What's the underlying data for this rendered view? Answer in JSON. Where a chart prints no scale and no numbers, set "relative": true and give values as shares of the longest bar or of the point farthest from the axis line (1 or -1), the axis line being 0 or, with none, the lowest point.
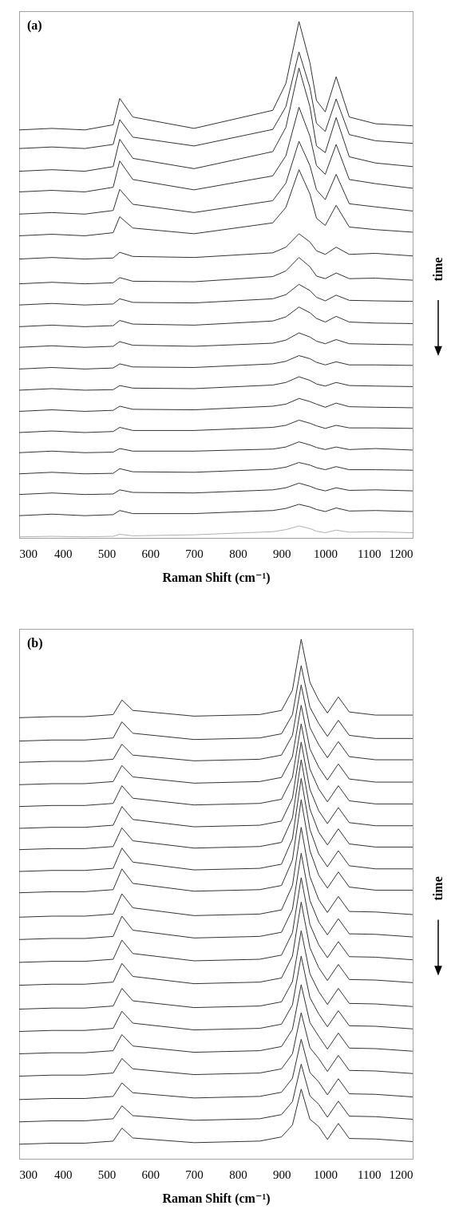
{
  "chart_data": [
    {
      "type": "line",
      "x": [
        300,
        375,
        450,
        515,
        530,
        560,
        700,
        880,
        910,
        940,
        965,
        980,
        1000,
        1025,
        1055,
        1115,
        1200
      ],
      "xlim": [
        300,
        1200
      ],
      "xticks": [
        300,
        400,
        500,
        600,
        700,
        800,
        900,
        1000,
        1100,
        1200
      ],
      "xlabel": "Raman Shift (cm⁻¹)",
      "relative": true,
      "annotations": [
        "(a)",
        "time"
      ],
      "series": [
        {
          "color": "#333333",
          "values": [
            0.79,
            0.793,
            0.79,
            0.8,
            0.851,
            0.815,
            0.793,
            0.828,
            0.88,
            1,
            0.92,
            0.847,
            0.825,
            0.893,
            0.815,
            0.802,
            0.798
          ]
        },
        {
          "color": "#333333",
          "values": [
            0.754,
            0.757,
            0.754,
            0.762,
            0.81,
            0.776,
            0.759,
            0.791,
            0.835,
            0.941,
            0.872,
            0.803,
            0.787,
            0.85,
            0.781,
            0.769,
            0.764
          ]
        },
        {
          "color": "#333333",
          "values": [
            0.71,
            0.713,
            0.71,
            0.719,
            0.772,
            0.735,
            0.715,
            0.748,
            0.795,
            0.91,
            0.835,
            0.759,
            0.746,
            0.814,
            0.738,
            0.726,
            0.719
          ]
        },
        {
          "color": "#333333",
          "values": [
            0.67,
            0.673,
            0.67,
            0.679,
            0.73,
            0.694,
            0.674,
            0.701,
            0.74,
            0.834,
            0.778,
            0.721,
            0.704,
            0.762,
            0.694,
            0.686,
            0.677
          ]
        },
        {
          "color": "#333333",
          "values": [
            0.627,
            0.63,
            0.627,
            0.634,
            0.675,
            0.646,
            0.63,
            0.653,
            0.687,
            0.768,
            0.721,
            0.674,
            0.655,
            0.704,
            0.647,
            0.641,
            0.633
          ]
        },
        {
          "color": "#333333",
          "values": [
            0.585,
            0.588,
            0.585,
            0.591,
            0.622,
            0.6,
            0.589,
            0.61,
            0.64,
            0.713,
            0.666,
            0.619,
            0.605,
            0.644,
            0.602,
            0.597,
            0.592
          ]
        },
        {
          "color": "#333333",
          "values": [
            0.54,
            0.543,
            0.54,
            0.542,
            0.553,
            0.545,
            0.543,
            0.552,
            0.563,
            0.589,
            0.573,
            0.556,
            0.549,
            0.563,
            0.549,
            0.551,
            0.546
          ]
        },
        {
          "color": "#333333",
          "values": [
            0.492,
            0.495,
            0.492,
            0.494,
            0.504,
            0.497,
            0.496,
            0.506,
            0.517,
            0.543,
            0.525,
            0.507,
            0.502,
            0.513,
            0.502,
            0.503,
            0.499
          ]
        },
        {
          "color": "#333333",
          "values": [
            0.451,
            0.454,
            0.451,
            0.453,
            0.463,
            0.456,
            0.455,
            0.463,
            0.471,
            0.491,
            0.479,
            0.466,
            0.459,
            0.47,
            0.46,
            0.459,
            0.458
          ]
        },
        {
          "color": "#333333",
          "values": [
            0.409,
            0.412,
            0.409,
            0.411,
            0.421,
            0.414,
            0.412,
            0.42,
            0.428,
            0.447,
            0.436,
            0.425,
            0.418,
            0.429,
            0.418,
            0.416,
            0.415
          ]
        },
        {
          "color": "#333333",
          "values": [
            0.369,
            0.372,
            0.369,
            0.371,
            0.38,
            0.373,
            0.371,
            0.377,
            0.383,
            0.397,
            0.389,
            0.381,
            0.376,
            0.384,
            0.376,
            0.375,
            0.374
          ]
        },
        {
          "color": "#333333",
          "values": [
            0.327,
            0.33,
            0.327,
            0.329,
            0.337,
            0.331,
            0.33,
            0.337,
            0.342,
            0.353,
            0.347,
            0.34,
            0.335,
            0.341,
            0.335,
            0.335,
            0.334
          ]
        },
        {
          "color": "#333333",
          "values": [
            0.286,
            0.289,
            0.286,
            0.287,
            0.295,
            0.29,
            0.289,
            0.296,
            0.301,
            0.312,
            0.305,
            0.298,
            0.294,
            0.301,
            0.295,
            0.294,
            0.293
          ]
        },
        {
          "color": "#333333",
          "values": [
            0.245,
            0.248,
            0.245,
            0.247,
            0.255,
            0.249,
            0.248,
            0.255,
            0.259,
            0.27,
            0.264,
            0.259,
            0.253,
            0.261,
            0.254,
            0.253,
            0.252
          ]
        },
        {
          "color": "#333333",
          "values": [
            0.204,
            0.207,
            0.204,
            0.206,
            0.214,
            0.208,
            0.208,
            0.214,
            0.218,
            0.228,
            0.222,
            0.217,
            0.212,
            0.218,
            0.213,
            0.213,
            0.212
          ]
        },
        {
          "color": "#333333",
          "values": [
            0.165,
            0.168,
            0.165,
            0.166,
            0.173,
            0.168,
            0.168,
            0.172,
            0.176,
            0.186,
            0.18,
            0.175,
            0.171,
            0.176,
            0.171,
            0.173,
            0.17
          ]
        },
        {
          "color": "#333333",
          "values": [
            0.124,
            0.127,
            0.124,
            0.125,
            0.134,
            0.128,
            0.127,
            0.133,
            0.137,
            0.146,
            0.141,
            0.136,
            0.132,
            0.138,
            0.132,
            0.132,
            0.131
          ]
        },
        {
          "color": "#333333",
          "values": [
            0.084,
            0.087,
            0.084,
            0.085,
            0.093,
            0.088,
            0.087,
            0.093,
            0.097,
            0.106,
            0.1,
            0.095,
            0.091,
            0.097,
            0.092,
            0.093,
            0.091
          ]
        },
        {
          "color": "#333333",
          "values": [
            0.043,
            0.046,
            0.043,
            0.045,
            0.053,
            0.047,
            0.047,
            0.053,
            0.057,
            0.065,
            0.06,
            0.055,
            0.051,
            0.058,
            0.052,
            0.053,
            0.051
          ]
        },
        {
          "color": "#b0b0b0",
          "values": [
            0.002,
            0.003,
            0.002,
            0.003,
            0.007,
            0.004,
            0.006,
            0.012,
            0.016,
            0.023,
            0.018,
            0.013,
            0.01,
            0.015,
            0.011,
            0.012,
            0.01
          ]
        }
      ]
    },
    {
      "type": "line",
      "x": [
        300,
        375,
        450,
        515,
        535,
        560,
        700,
        850,
        900,
        925,
        945,
        965,
        985,
        1005,
        1030,
        1055,
        1115,
        1200
      ],
      "xlim": [
        300,
        1200
      ],
      "xticks": [
        300,
        400,
        500,
        600,
        700,
        800,
        900,
        1000,
        1100,
        1200
      ],
      "xlabel": "Raman Shift (cm⁻¹)",
      "relative": true,
      "annotations": [
        "(b)",
        "time"
      ],
      "series": [
        {
          "color": "#333333",
          "values": [
            0.849,
            0.851,
            0.851,
            0.855,
            0.883,
            0.863,
            0.852,
            0.855,
            0.863,
            0.902,
            1,
            0.917,
            0.883,
            0.858,
            0.889,
            0.86,
            0.854,
            0.854
          ]
        },
        {
          "color": "#333333",
          "values": [
            0.804,
            0.806,
            0.806,
            0.81,
            0.841,
            0.819,
            0.807,
            0.81,
            0.818,
            0.855,
            0.949,
            0.869,
            0.838,
            0.813,
            0.844,
            0.815,
            0.809,
            0.809
          ]
        },
        {
          "color": "#333333",
          "values": [
            0.763,
            0.765,
            0.765,
            0.769,
            0.798,
            0.777,
            0.766,
            0.769,
            0.777,
            0.815,
            0.912,
            0.83,
            0.797,
            0.772,
            0.803,
            0.774,
            0.768,
            0.768
          ]
        },
        {
          "color": "#333333",
          "values": [
            0.72,
            0.722,
            0.722,
            0.726,
            0.757,
            0.735,
            0.723,
            0.726,
            0.734,
            0.774,
            0.873,
            0.789,
            0.754,
            0.729,
            0.76,
            0.731,
            0.725,
            0.725
          ]
        },
        {
          "color": "#333333",
          "values": [
            0.678,
            0.68,
            0.68,
            0.684,
            0.718,
            0.694,
            0.681,
            0.684,
            0.692,
            0.734,
            0.837,
            0.75,
            0.712,
            0.687,
            0.718,
            0.689,
            0.683,
            0.683
          ]
        },
        {
          "color": "#333333",
          "values": [
            0.636,
            0.638,
            0.638,
            0.642,
            0.678,
            0.653,
            0.639,
            0.642,
            0.65,
            0.694,
            0.802,
            0.711,
            0.67,
            0.645,
            0.676,
            0.647,
            0.641,
            0.641
          ]
        },
        {
          "color": "#333333",
          "values": [
            0.595,
            0.597,
            0.597,
            0.601,
            0.637,
            0.612,
            0.598,
            0.601,
            0.609,
            0.656,
            0.768,
            0.673,
            0.629,
            0.604,
            0.635,
            0.606,
            0.6,
            0.6
          ]
        },
        {
          "color": "#333333",
          "values": [
            0.553,
            0.555,
            0.555,
            0.559,
            0.598,
            0.571,
            0.556,
            0.559,
            0.567,
            0.616,
            0.732,
            0.634,
            0.587,
            0.562,
            0.593,
            0.564,
            0.558,
            0.558
          ]
        },
        {
          "color": "#333333",
          "values": [
            0.512,
            0.514,
            0.514,
            0.518,
            0.558,
            0.53,
            0.515,
            0.518,
            0.526,
            0.575,
            0.691,
            0.593,
            0.546,
            0.521,
            0.552,
            0.523,
            0.517,
            0.517
          ]
        },
        {
          "color": "#333333",
          "values": [
            0.465,
            0.467,
            0.467,
            0.471,
            0.51,
            0.483,
            0.468,
            0.471,
            0.479,
            0.526,
            0.638,
            0.543,
            0.499,
            0.474,
            0.505,
            0.476,
            0.475,
            0.47
          ]
        },
        {
          "color": "#333333",
          "values": [
            0.422,
            0.424,
            0.424,
            0.428,
            0.467,
            0.44,
            0.425,
            0.428,
            0.436,
            0.48,
            0.588,
            0.497,
            0.456,
            0.431,
            0.462,
            0.433,
            0.432,
            0.427
          ]
        },
        {
          "color": "#333333",
          "values": [
            0.378,
            0.38,
            0.38,
            0.384,
            0.421,
            0.395,
            0.381,
            0.384,
            0.392,
            0.435,
            0.541,
            0.451,
            0.412,
            0.387,
            0.418,
            0.389,
            0.388,
            0.383
          ]
        },
        {
          "color": "#333333",
          "values": [
            0.334,
            0.336,
            0.336,
            0.34,
            0.376,
            0.351,
            0.337,
            0.34,
            0.348,
            0.39,
            0.494,
            0.406,
            0.368,
            0.343,
            0.374,
            0.345,
            0.344,
            0.339
          ]
        },
        {
          "color": "#333333",
          "values": [
            0.288,
            0.29,
            0.29,
            0.294,
            0.328,
            0.304,
            0.291,
            0.294,
            0.302,
            0.341,
            0.439,
            0.356,
            0.322,
            0.297,
            0.328,
            0.299,
            0.298,
            0.293
          ]
        },
        {
          "color": "#333333",
          "values": [
            0.245,
            0.247,
            0.247,
            0.251,
            0.284,
            0.261,
            0.248,
            0.251,
            0.259,
            0.296,
            0.39,
            0.31,
            0.279,
            0.254,
            0.285,
            0.256,
            0.255,
            0.25
          ]
        },
        {
          "color": "#333333",
          "values": [
            0.202,
            0.204,
            0.204,
            0.208,
            0.239,
            0.217,
            0.205,
            0.208,
            0.216,
            0.249,
            0.335,
            0.262,
            0.236,
            0.211,
            0.242,
            0.213,
            0.212,
            0.207
          ]
        },
        {
          "color": "#333333",
          "values": [
            0.159,
            0.161,
            0.161,
            0.165,
            0.193,
            0.173,
            0.162,
            0.165,
            0.173,
            0.202,
            0.281,
            0.214,
            0.193,
            0.168,
            0.199,
            0.17,
            0.169,
            0.164
          ]
        },
        {
          "color": "#333333",
          "values": [
            0.114,
            0.116,
            0.116,
            0.12,
            0.146,
            0.127,
            0.117,
            0.12,
            0.128,
            0.155,
            0.23,
            0.166,
            0.148,
            0.123,
            0.154,
            0.125,
            0.124,
            0.119
          ]
        },
        {
          "color": "#333333",
          "values": [
            0.071,
            0.073,
            0.073,
            0.077,
            0.102,
            0.083,
            0.074,
            0.077,
            0.085,
            0.11,
            0.182,
            0.121,
            0.105,
            0.08,
            0.111,
            0.082,
            0.081,
            0.076
          ]
        },
        {
          "color": "#333333",
          "values": [
            0.028,
            0.03,
            0.03,
            0.034,
            0.059,
            0.04,
            0.031,
            0.034,
            0.042,
            0.065,
            0.134,
            0.076,
            0.062,
            0.037,
            0.068,
            0.039,
            0.038,
            0.033
          ]
        }
      ]
    }
  ]
}
